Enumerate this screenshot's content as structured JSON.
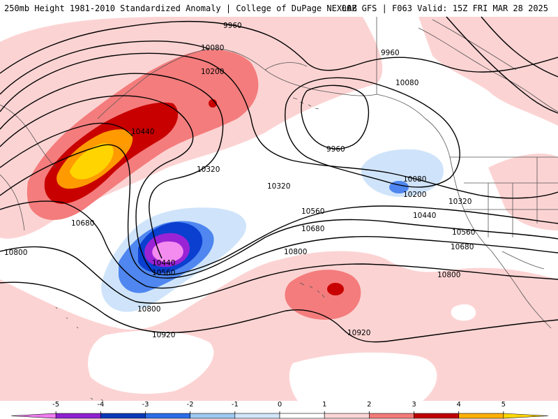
{
  "header": {
    "title_left": "250mb Height 1981-2010 Standardized Anomaly | College of DuPage NEXLAB",
    "title_right": "00Z GFS | F063 Valid: 15Z FRI MAR 28 2025"
  },
  "colorbar": {
    "ticks": [
      "-5",
      "-4",
      "-3",
      "-2",
      "-1",
      "0",
      "1",
      "2",
      "3",
      "4",
      "5"
    ],
    "colors": [
      "#f07cf0",
      "#8e1fd0",
      "#0a38b8",
      "#2c6ce8",
      "#9ec8f2",
      "#d2e6fa",
      "#ffffff",
      "#fcd6d6",
      "#f47a7a",
      "#c00000",
      "#ffb000",
      "#ffd700"
    ]
  },
  "colors": {
    "anom_pos_1": "#fcd3d3",
    "anom_pos_2": "#f47c7c",
    "anom_pos_3": "#c80000",
    "anom_pos_4": "#ff9a00",
    "anom_pos_5": "#ffd400",
    "anom_neg_1": "#cfe4fa",
    "anom_neg_2": "#4f86f0",
    "anom_neg_3": "#0a3fcf",
    "anom_neg_4": "#9a23d6",
    "anom_neg_5": "#f48cf0",
    "coastline": "#555555",
    "contour": "#000000"
  },
  "contour_labels": [
    {
      "text": "9960"
    },
    {
      "text": "10080"
    },
    {
      "text": "10200"
    },
    {
      "text": "10440"
    },
    {
      "text": "10320"
    },
    {
      "text": "10680"
    },
    {
      "text": "10800"
    },
    {
      "text": "10440"
    },
    {
      "text": "10560"
    },
    {
      "text": "10800"
    },
    {
      "text": "10920"
    },
    {
      "text": "9960"
    },
    {
      "text": "10080"
    },
    {
      "text": "9960"
    },
    {
      "text": "10080"
    },
    {
      "text": "10200"
    },
    {
      "text": "10320"
    },
    {
      "text": "10320"
    },
    {
      "text": "10440"
    },
    {
      "text": "10560"
    },
    {
      "text": "10560"
    },
    {
      "text": "10680"
    },
    {
      "text": "10680"
    },
    {
      "text": "10800"
    },
    {
      "text": "10800"
    },
    {
      "text": "10920"
    }
  ]
}
